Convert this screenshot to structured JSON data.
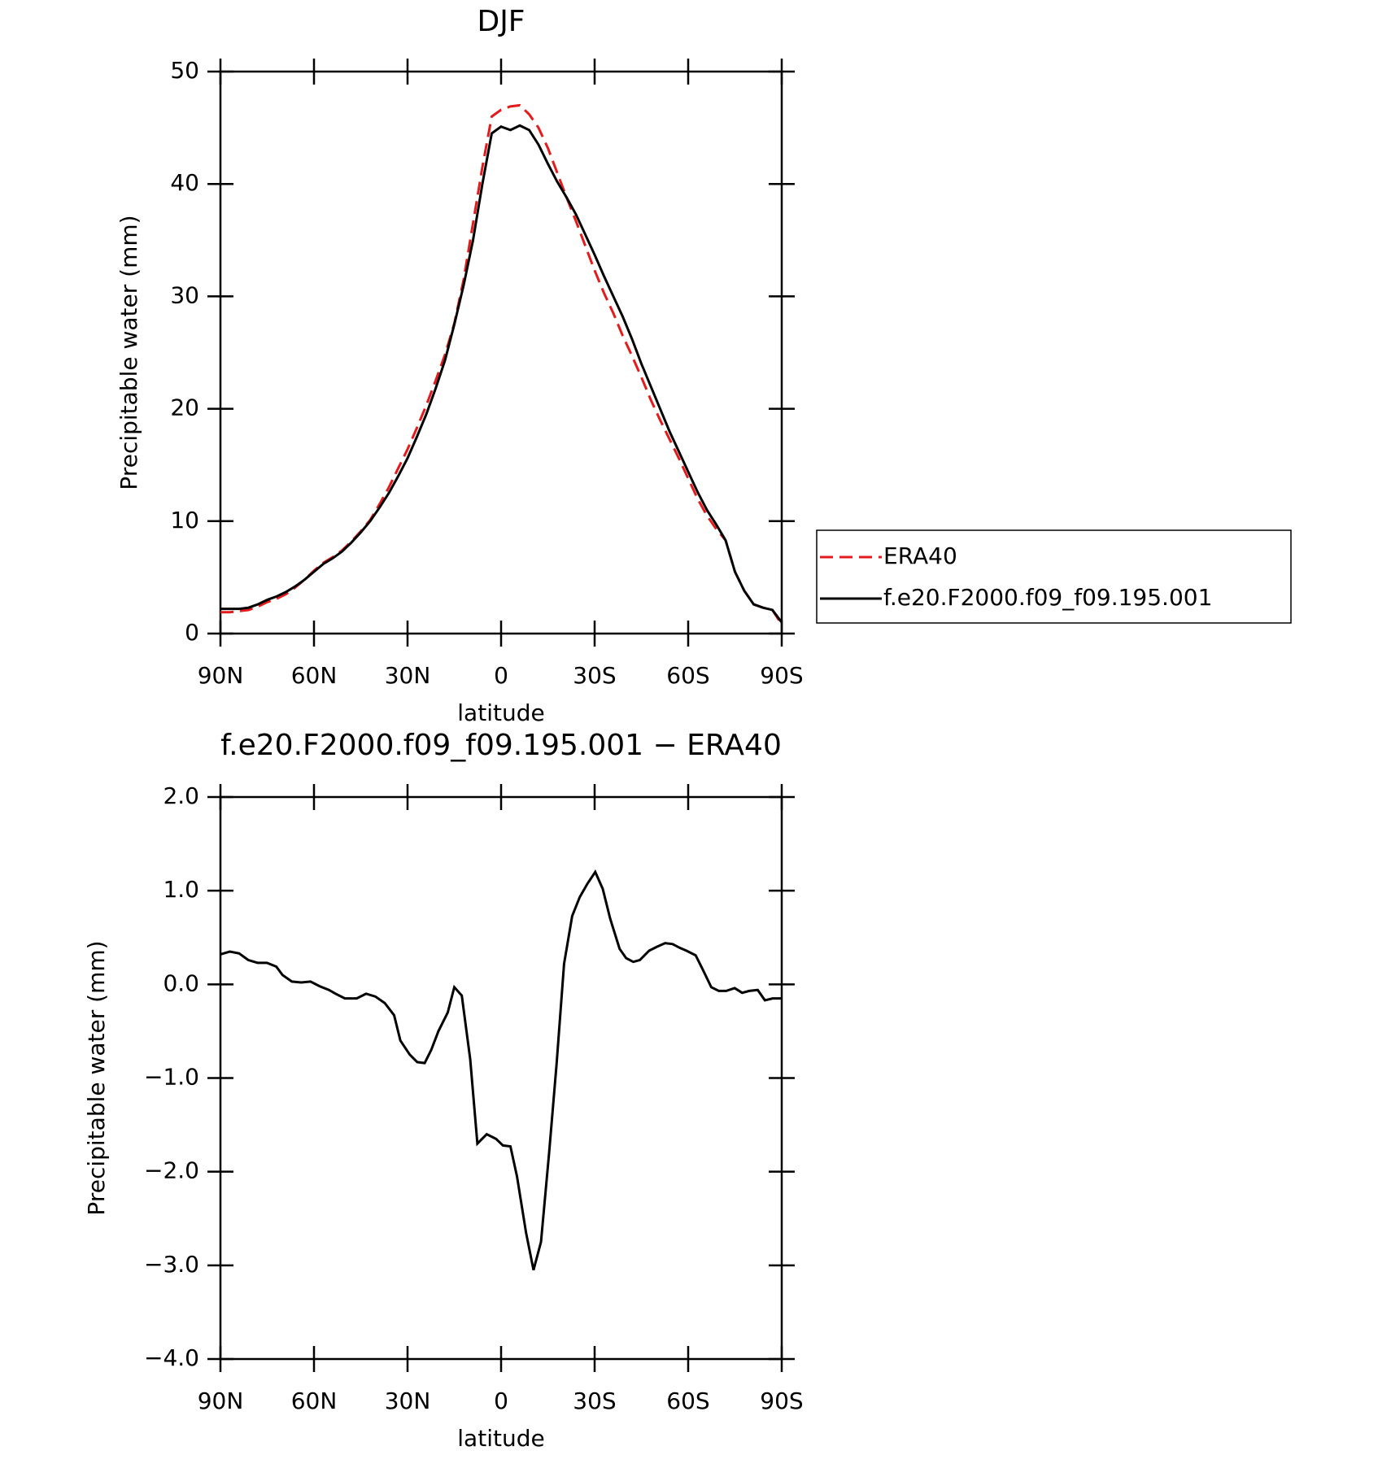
{
  "chart_data": [
    {
      "type": "line",
      "title": "DJF",
      "xlabel": "latitude",
      "ylabel": "Precipitable water (mm)",
      "x": [
        90,
        87,
        84,
        81,
        78,
        75,
        72,
        69,
        66,
        63,
        60,
        57,
        54,
        51,
        48,
        45,
        42,
        39,
        36,
        33,
        30,
        27,
        24,
        21,
        18,
        15,
        12,
        9,
        6,
        3,
        0,
        -3,
        -6,
        -9,
        -12,
        -15,
        -18,
        -21,
        -24,
        -27,
        -30,
        -33,
        -36,
        -39,
        -42,
        -45,
        -48,
        -51,
        -54,
        -57,
        -60,
        -63,
        -66,
        -69,
        -72,
        -75,
        -78,
        -81,
        -84,
        -87,
        -90
      ],
      "series": [
        {
          "name": "ERA40",
          "color": "#e41a1c",
          "line_style": "dashed",
          "values": [
            1.9,
            1.9,
            2.0,
            2.1,
            2.4,
            2.8,
            3.1,
            3.5,
            4.1,
            4.8,
            5.6,
            6.3,
            6.8,
            7.4,
            8.2,
            9.1,
            10.1,
            11.5,
            13,
            14.7,
            16.4,
            18.3,
            20.3,
            22.5,
            24.8,
            27.6,
            31.5,
            36.5,
            41.5,
            46,
            46.6,
            46.9,
            47,
            46.2,
            45,
            43.2,
            41,
            38.8,
            36.7,
            34.5,
            32.3,
            30.3,
            28.5,
            26.5,
            24.7,
            22.8,
            20.8,
            19,
            17.3,
            15.6,
            13.8,
            12,
            10.5,
            9.3,
            8.3,
            5.5,
            3.8,
            2.6,
            2.3,
            2.1,
            0.8
          ]
        },
        {
          "name": "f.e20.F2000.f09_f09.195.001",
          "color": "#000000",
          "line_style": "solid",
          "values": [
            2.2,
            2.2,
            2.2,
            2.3,
            2.6,
            3.0,
            3.3,
            3.7,
            4.2,
            4.8,
            5.5,
            6.2,
            6.7,
            7.3,
            8.1,
            9.0,
            10.0,
            11.2,
            12.5,
            14.0,
            15.6,
            17.5,
            19.5,
            21.8,
            24.3,
            27.5,
            31,
            35,
            40,
            44.5,
            45.1,
            44.8,
            45.2,
            44.8,
            43.5,
            41.8,
            40.2,
            38.8,
            37.3,
            35.5,
            33.7,
            31.8,
            30,
            28.2,
            26.2,
            24,
            22,
            20,
            18,
            16.2,
            14.4,
            12.6,
            11,
            9.7,
            8.3,
            5.5,
            3.8,
            2.6,
            2.3,
            2.1,
            1.0
          ]
        }
      ],
      "xlim": [
        90,
        -90
      ],
      "xticks": [
        {
          "value": 90,
          "label": "90N"
        },
        {
          "value": 60,
          "label": "60N"
        },
        {
          "value": 30,
          "label": "30N"
        },
        0,
        {
          "value": -30,
          "label": "30S"
        },
        {
          "value": -60,
          "label": "60S"
        },
        {
          "value": -90,
          "label": "90S"
        }
      ],
      "ylim": [
        0,
        50
      ],
      "yticks": [
        0,
        10,
        20,
        30,
        40,
        50
      ],
      "legend": "right"
    },
    {
      "type": "line",
      "title": "f.e20.F2000.f09_f09.195.001 − ERA40",
      "xlabel": "latitude",
      "ylabel": "Precipitable water (mm)",
      "x": [
        90,
        87.0,
        84.0,
        81.1,
        78.1,
        75.1,
        72.1,
        70.1,
        67.1,
        64.1,
        61.1,
        58.2,
        55.2,
        53.1,
        50.1,
        46.3,
        43.3,
        40.3,
        37.3,
        34.3,
        32.3,
        29.3,
        26.9,
        24.5,
        22.4,
        20.1,
        17.1,
        15.0,
        12.6,
        9.9,
        7.6,
        4.6,
        1.6,
        -0.6,
        -3.0,
        -5.1,
        -8.0,
        -10.4,
        -12.8,
        -15.4,
        -17.8,
        -20.2,
        -22.8,
        -25.2,
        -27.6,
        -30.2,
        -32.6,
        -35.0,
        -38.0,
        -40.1,
        -42.4,
        -44.5,
        -47.5,
        -49.9,
        -52.6,
        -55.0,
        -57.3,
        -59.4,
        -62.4,
        -64.8,
        -67.4,
        -69.8,
        -72.2,
        -74.9,
        -77.3,
        -79.6,
        -82.3,
        -84.6,
        -87.1,
        -90
      ],
      "values": [
        0.32,
        0.35,
        0.33,
        0.26,
        0.23,
        0.23,
        0.19,
        0.1,
        0.03,
        0.02,
        0.03,
        -0.02,
        -0.06,
        -0.1,
        -0.15,
        -0.15,
        -0.1,
        -0.13,
        -0.2,
        -0.33,
        -0.6,
        -0.75,
        -0.83,
        -0.84,
        -0.7,
        -0.5,
        -0.3,
        -0.03,
        -0.12,
        -0.8,
        -1.7,
        -1.6,
        -1.65,
        -1.72,
        -1.73,
        -2.05,
        -2.65,
        -3.05,
        -2.75,
        -1.8,
        -0.85,
        0.22,
        0.73,
        0.93,
        1.07,
        1.2,
        1.02,
        0.7,
        0.38,
        0.28,
        0.24,
        0.26,
        0.36,
        0.4,
        0.44,
        0.43,
        0.39,
        0.36,
        0.31,
        0.15,
        -0.03,
        -0.07,
        -0.07,
        -0.04,
        -0.09,
        -0.07,
        -0.06,
        -0.17,
        -0.15,
        -0.15
      ],
      "color": "#000000",
      "xlim": [
        90,
        -90
      ],
      "xticks": [
        {
          "value": 90,
          "label": "90N"
        },
        {
          "value": 60,
          "label": "60N"
        },
        {
          "value": 30,
          "label": "30N"
        },
        0,
        {
          "value": -30,
          "label": "30S"
        },
        {
          "value": -60,
          "label": "60S"
        },
        {
          "value": -90,
          "label": "90S"
        }
      ],
      "ylim": [
        -4,
        2
      ],
      "yticks": [
        {
          "value": 2,
          "label": "2.0"
        },
        {
          "value": 1,
          "label": "1.0"
        },
        {
          "value": 0,
          "label": "0.0"
        },
        {
          "value": -1,
          "label": "−1.0"
        },
        {
          "value": -2,
          "label": "−2.0"
        },
        {
          "value": -3,
          "label": "−3.0"
        },
        {
          "value": -4,
          "label": "−4.0"
        }
      ]
    }
  ]
}
